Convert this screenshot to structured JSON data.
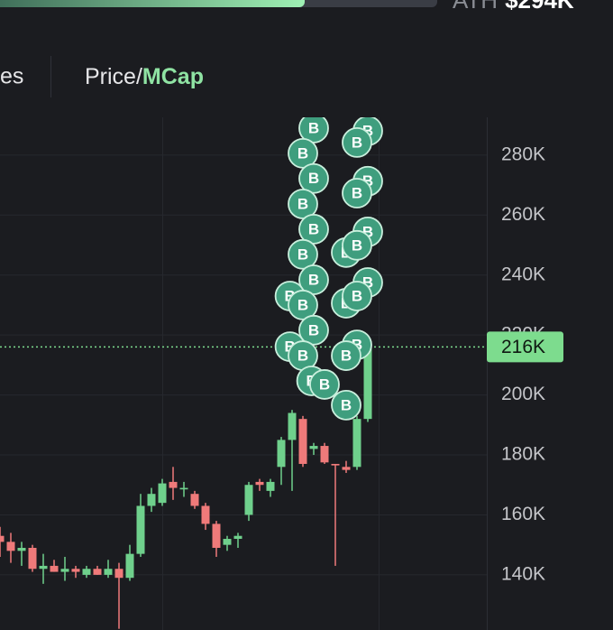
{
  "header": {
    "ath_label": "ATH",
    "ath_value": "$294K"
  },
  "tabs": [
    "es"
  ],
  "toggle": {
    "left": "Price/",
    "right": "MCap"
  },
  "chart_data": {
    "type": "candlestick",
    "x": [
      0,
      1,
      2,
      3,
      4,
      5,
      6,
      7,
      8,
      9,
      10,
      11,
      12,
      13,
      14,
      15,
      16,
      17,
      18,
      19,
      20,
      21,
      22,
      23,
      24,
      25,
      26,
      27,
      28,
      29,
      30,
      31,
      32,
      33,
      34
    ],
    "open": [
      153,
      151,
      148,
      149,
      142,
      143,
      141,
      142,
      140,
      142,
      140,
      142,
      139,
      147,
      163,
      164,
      171,
      168.5,
      167,
      163,
      157,
      150,
      152,
      160,
      171,
      168,
      176,
      185,
      192,
      182,
      183,
      177,
      176,
      176,
      192
    ],
    "high": [
      156,
      154,
      151,
      150,
      147,
      145,
      146,
      143,
      143,
      143,
      145,
      144,
      150,
      167,
      169,
      172,
      176,
      171,
      168,
      164,
      158,
      153,
      154,
      171,
      172,
      172,
      186,
      195,
      193,
      184,
      184,
      177,
      178,
      193,
      216
    ],
    "low": [
      146,
      144,
      143,
      141,
      137,
      141,
      138,
      139,
      139,
      140,
      139,
      122,
      138,
      146,
      161,
      163,
      165,
      166,
      162,
      155,
      146,
      148,
      149,
      158,
      168,
      166,
      170,
      168,
      176,
      180,
      177,
      143,
      174,
      175,
      191
    ],
    "close": [
      151,
      148,
      149,
      142,
      143,
      141,
      142,
      141,
      142,
      140,
      142,
      139,
      147,
      163,
      167,
      170.5,
      169,
      169,
      163,
      157,
      149,
      152,
      153,
      170,
      170,
      171,
      185,
      194,
      177,
      183,
      177.5,
      176.5,
      175,
      192,
      216
    ],
    "up_color": "#6fd08c",
    "down_color": "#ef7a7a",
    "xlim": [
      0,
      45
    ],
    "ylim": [
      121.6,
      292.6
    ],
    "yticks": [
      {
        "value": 140,
        "label": "140K"
      },
      {
        "value": 160,
        "label": "160K"
      },
      {
        "value": 180,
        "label": "180K"
      },
      {
        "value": 200,
        "label": "200K"
      },
      {
        "value": 220,
        "label": "220K"
      },
      {
        "value": 240,
        "label": "240K"
      },
      {
        "value": 260,
        "label": "260K"
      },
      {
        "value": 280,
        "label": "280K"
      }
    ],
    "grid": true,
    "current_price": {
      "value": 216,
      "label": "216K",
      "color": "#7ddc8e"
    },
    "markers": {
      "label": "B",
      "color": "#3f9e7e",
      "x": [
        29,
        28,
        29,
        28,
        29,
        28,
        29,
        26.8,
        28,
        29,
        26.8,
        28,
        28.8,
        30,
        32,
        34,
        33,
        34,
        33,
        34,
        32,
        33,
        34,
        32,
        33,
        33,
        32
      ],
      "y": [
        289.0,
        280.6,
        272.2,
        263.7,
        255.3,
        246.9,
        238.4,
        233.0,
        230.0,
        221.6,
        216.1,
        213.1,
        204.7,
        203.5,
        196.6,
        288.1,
        284.2,
        271.3,
        267.3,
        254.4,
        247.5,
        249.9,
        237.5,
        230.6,
        233.0,
        216.7,
        213.1
      ]
    }
  }
}
